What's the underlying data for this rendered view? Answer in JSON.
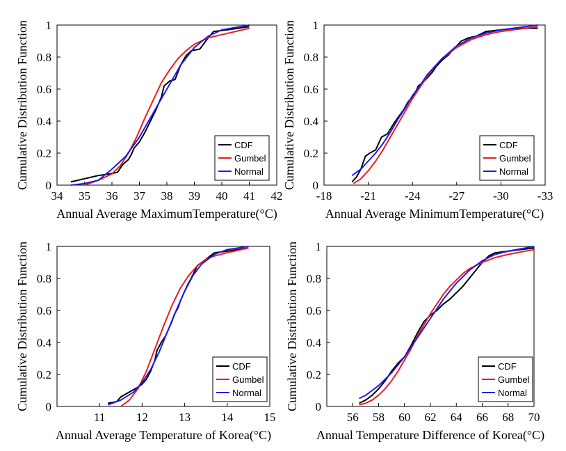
{
  "chart_data": [
    {
      "type": "line",
      "xlabel": "Annual Average MaximumTemperature(°C)",
      "ylabel": "Cumulative Distribution Function",
      "xlim": [
        34,
        42
      ],
      "ylim": [
        0,
        1
      ],
      "xticks": [
        34,
        35,
        36,
        37,
        38,
        39,
        40,
        41,
        42
      ],
      "xtick_labels": [
        "34",
        "35",
        "36",
        "37",
        "38",
        "39",
        "40",
        "41",
        "42"
      ],
      "yticks": [
        0,
        0.2,
        0.4,
        0.6,
        0.8,
        1
      ],
      "ytick_labels": [
        "0",
        "0.2",
        "0.4",
        "0.6",
        "0.8",
        "1"
      ],
      "grid": false,
      "legend_position": "bottom-right",
      "series": [
        {
          "name": "CDF",
          "color": "#000000",
          "x": [
            34.5,
            35.0,
            35.5,
            35.9,
            36.2,
            36.4,
            36.6,
            36.7,
            36.8,
            37.0,
            37.2,
            37.4,
            37.6,
            37.8,
            37.9,
            38.1,
            38.3,
            38.5,
            38.7,
            38.9,
            39.2,
            39.5,
            39.7,
            40.2,
            41.0
          ],
          "y": [
            0.02,
            0.04,
            0.06,
            0.07,
            0.08,
            0.13,
            0.16,
            0.19,
            0.23,
            0.27,
            0.33,
            0.4,
            0.47,
            0.55,
            0.62,
            0.65,
            0.66,
            0.75,
            0.81,
            0.84,
            0.85,
            0.92,
            0.96,
            0.97,
            0.99
          ]
        },
        {
          "name": "Gumbel",
          "color": "#ee1c1c",
          "x": [
            35.0,
            35.5,
            36.0,
            36.3,
            36.6,
            36.9,
            37.2,
            37.5,
            37.8,
            38.1,
            38.4,
            38.7,
            39.0,
            39.5,
            40.0,
            41.0
          ],
          "y": [
            0.0,
            0.03,
            0.07,
            0.12,
            0.2,
            0.3,
            0.42,
            0.53,
            0.64,
            0.72,
            0.79,
            0.84,
            0.88,
            0.92,
            0.94,
            0.98
          ]
        },
        {
          "name": "Normal",
          "color": "#1c1cee",
          "x": [
            34.5,
            35.0,
            35.5,
            36.0,
            36.5,
            37.0,
            37.5,
            38.0,
            38.5,
            39.0,
            39.5,
            40.0,
            41.0
          ],
          "y": [
            0.0,
            0.01,
            0.03,
            0.1,
            0.18,
            0.3,
            0.45,
            0.6,
            0.75,
            0.86,
            0.93,
            0.97,
            1.0
          ]
        }
      ]
    },
    {
      "type": "line",
      "xlabel": "Annual Average MinimumTemperature(°C)",
      "ylabel": "Cumulative Distribution Function",
      "xlim": [
        -18,
        -33
      ],
      "ylim": [
        0,
        1
      ],
      "xticks": [
        -18,
        -21,
        -24,
        -27,
        -30,
        -33
      ],
      "xtick_labels": [
        "-18",
        "-21",
        "-24",
        "-27",
        "-30",
        "-33"
      ],
      "yticks": [
        0,
        0.2,
        0.4,
        0.6,
        0.8,
        1
      ],
      "ytick_labels": [
        "0",
        "0.2",
        "0.4",
        "0.6",
        "0.8",
        "1"
      ],
      "grid": false,
      "legend_position": "bottom-right",
      "series": [
        {
          "name": "CDF",
          "color": "#000000",
          "x": [
            -19.9,
            -20.2,
            -20.5,
            -20.8,
            -21.1,
            -21.5,
            -21.9,
            -22.3,
            -22.7,
            -23.0,
            -23.4,
            -23.7,
            -24.1,
            -24.4,
            -24.7,
            -25.0,
            -25.3,
            -25.6,
            -26.0,
            -26.4,
            -26.8,
            -27.3,
            -27.8,
            -28.3,
            -29.0,
            -30.0,
            -31.0,
            -32.5
          ],
          "y": [
            0.02,
            0.05,
            0.1,
            0.18,
            0.2,
            0.22,
            0.3,
            0.32,
            0.38,
            0.42,
            0.47,
            0.52,
            0.56,
            0.62,
            0.64,
            0.67,
            0.7,
            0.74,
            0.78,
            0.81,
            0.85,
            0.9,
            0.92,
            0.93,
            0.96,
            0.97,
            0.98,
            0.98
          ]
        },
        {
          "name": "Gumbel",
          "color": "#ee1c1c",
          "x": [
            -20.0,
            -20.5,
            -21.0,
            -21.5,
            -22.0,
            -22.5,
            -23.0,
            -23.5,
            -24.0,
            -24.5,
            -25.0,
            -25.5,
            -26.0,
            -27.0,
            -28.0,
            -29.0,
            -30.0,
            -32.5
          ],
          "y": [
            0.01,
            0.04,
            0.09,
            0.15,
            0.22,
            0.3,
            0.38,
            0.46,
            0.54,
            0.61,
            0.68,
            0.74,
            0.79,
            0.86,
            0.91,
            0.94,
            0.96,
            0.99
          ]
        },
        {
          "name": "Normal",
          "color": "#1c1cee",
          "x": [
            -19.9,
            -20.5,
            -21.0,
            -21.5,
            -22.0,
            -22.5,
            -23.0,
            -23.5,
            -24.0,
            -24.5,
            -25.0,
            -25.5,
            -26.0,
            -27.0,
            -28.0,
            -29.0,
            -30.0,
            -32.5
          ],
          "y": [
            0.06,
            0.1,
            0.15,
            0.2,
            0.26,
            0.33,
            0.41,
            0.48,
            0.56,
            0.62,
            0.69,
            0.74,
            0.79,
            0.87,
            0.92,
            0.95,
            0.97,
            1.0
          ]
        }
      ]
    },
    {
      "type": "line",
      "xlabel": "Annual Average Temperature of Korea(°C)",
      "ylabel": "Cumulative Distribution Function",
      "xlim": [
        10,
        15
      ],
      "ylim": [
        0,
        1
      ],
      "xticks": [
        11,
        12,
        13,
        14,
        15
      ],
      "xtick_labels": [
        "11",
        "12",
        "13",
        "14",
        "15"
      ],
      "yticks": [
        0,
        0.2,
        0.4,
        0.6,
        0.8,
        1
      ],
      "ytick_labels": [
        "0",
        "0.2",
        "0.4",
        "0.6",
        "0.8",
        "1"
      ],
      "grid": false,
      "legend_position": "bottom-right",
      "series": [
        {
          "name": "CDF",
          "color": "#000000",
          "x": [
            11.2,
            11.4,
            11.5,
            11.7,
            11.9,
            12.0,
            12.1,
            12.2,
            12.3,
            12.35,
            12.45,
            12.55,
            12.6,
            12.7,
            12.75,
            12.85,
            12.9,
            13.0,
            13.05,
            13.15,
            13.3,
            13.5,
            13.7,
            14.0,
            14.5
          ],
          "y": [
            0.02,
            0.03,
            0.06,
            0.09,
            0.12,
            0.14,
            0.17,
            0.22,
            0.29,
            0.35,
            0.4,
            0.44,
            0.47,
            0.53,
            0.57,
            0.62,
            0.66,
            0.72,
            0.75,
            0.8,
            0.88,
            0.92,
            0.96,
            0.97,
            0.99
          ]
        },
        {
          "name": "Gumbel",
          "color": "#ee1c1c",
          "x": [
            11.5,
            11.7,
            11.9,
            12.1,
            12.3,
            12.5,
            12.7,
            12.9,
            13.1,
            13.3,
            13.5,
            13.7,
            14.0,
            14.5
          ],
          "y": [
            0.0,
            0.04,
            0.11,
            0.22,
            0.36,
            0.5,
            0.63,
            0.74,
            0.82,
            0.88,
            0.92,
            0.94,
            0.96,
            0.99
          ]
        },
        {
          "name": "Normal",
          "color": "#1c1cee",
          "x": [
            11.2,
            11.5,
            11.8,
            12.0,
            12.2,
            12.4,
            12.6,
            12.8,
            13.0,
            13.2,
            13.4,
            13.7,
            14.0,
            14.5
          ],
          "y": [
            0.01,
            0.04,
            0.09,
            0.15,
            0.23,
            0.34,
            0.47,
            0.6,
            0.72,
            0.82,
            0.89,
            0.95,
            0.98,
            1.0
          ]
        }
      ]
    },
    {
      "type": "line",
      "xlabel": "Annual Temperature Difference of Korea(°C)",
      "ylabel": "Cumulative Distribution Function",
      "xlim": [
        54,
        70
      ],
      "ylim": [
        0,
        1
      ],
      "xticks": [
        56,
        58,
        60,
        62,
        64,
        66,
        68,
        70
      ],
      "xtick_labels": [
        "56",
        "58",
        "60",
        "62",
        "64",
        "66",
        "68",
        "70"
      ],
      "yticks": [
        0,
        0.2,
        0.4,
        0.6,
        0.8,
        1
      ],
      "ytick_labels": [
        "0",
        "0.2",
        "0.4",
        "0.6",
        "0.8",
        "1"
      ],
      "grid": false,
      "legend_position": "bottom-right",
      "series": [
        {
          "name": "CDF",
          "color": "#000000",
          "x": [
            56.5,
            57.0,
            57.5,
            58.0,
            58.5,
            59.0,
            59.5,
            60.0,
            60.5,
            61.0,
            61.5,
            62.0,
            62.5,
            63.0,
            63.5,
            64.0,
            64.5,
            65.0,
            65.5,
            66.0,
            66.5,
            67.0,
            68.0,
            70.0
          ],
          "y": [
            0.02,
            0.04,
            0.07,
            0.11,
            0.16,
            0.22,
            0.27,
            0.31,
            0.38,
            0.46,
            0.53,
            0.57,
            0.6,
            0.64,
            0.67,
            0.71,
            0.75,
            0.8,
            0.85,
            0.9,
            0.94,
            0.96,
            0.97,
            0.99
          ]
        },
        {
          "name": "Gumbel",
          "color": "#ee1c1c",
          "x": [
            56.5,
            57.0,
            57.5,
            58.0,
            58.5,
            59.0,
            59.5,
            60.0,
            60.5,
            61.0,
            61.5,
            62.0,
            62.5,
            63.0,
            63.5,
            64.0,
            64.5,
            65.0,
            66.0,
            67.0,
            68.0,
            70.0
          ],
          "y": [
            0.01,
            0.02,
            0.04,
            0.07,
            0.11,
            0.16,
            0.22,
            0.29,
            0.36,
            0.44,
            0.51,
            0.58,
            0.64,
            0.7,
            0.75,
            0.79,
            0.83,
            0.86,
            0.9,
            0.93,
            0.95,
            0.98
          ]
        },
        {
          "name": "Normal",
          "color": "#1c1cee",
          "x": [
            56.5,
            57.0,
            57.5,
            58.0,
            58.5,
            59.0,
            59.5,
            60.0,
            60.5,
            61.0,
            61.5,
            62.0,
            62.5,
            63.0,
            63.5,
            64.0,
            64.5,
            65.0,
            66.0,
            67.0,
            68.0,
            70.0
          ],
          "y": [
            0.05,
            0.07,
            0.1,
            0.13,
            0.17,
            0.21,
            0.26,
            0.31,
            0.37,
            0.43,
            0.49,
            0.55,
            0.61,
            0.67,
            0.72,
            0.77,
            0.81,
            0.85,
            0.91,
            0.95,
            0.97,
            1.0
          ]
        }
      ]
    }
  ]
}
